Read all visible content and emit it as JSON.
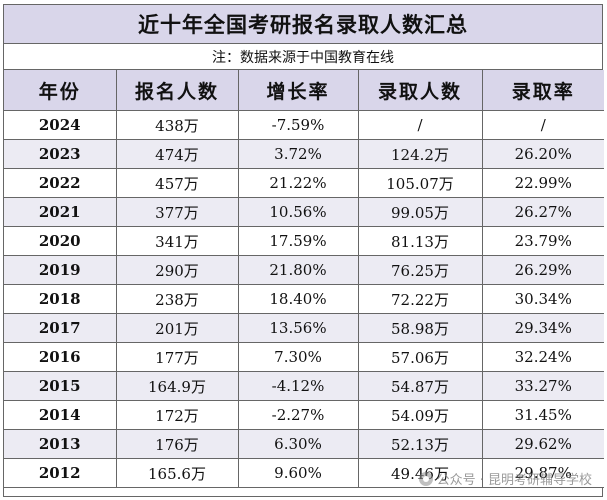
{
  "title": "近十年全国考研报名录取人数汇总",
  "note": "注：数据来源于中国教育在线",
  "headers": [
    "年份",
    "报名人数",
    "增长率",
    "录取人数",
    "录取率"
  ],
  "rows": [
    [
      "2024",
      "438万",
      "-7.59%",
      "/",
      "/"
    ],
    [
      "2023",
      "474万",
      "3.72%",
      "124.2万",
      "26.20%"
    ],
    [
      "2022",
      "457万",
      "21.22%",
      "105.07万",
      "22.99%"
    ],
    [
      "2021",
      "377万",
      "10.56%",
      "99.05万",
      "26.27%"
    ],
    [
      "2020",
      "341万",
      "17.59%",
      "81.13万",
      "23.79%"
    ],
    [
      "2019",
      "290万",
      "21.80%",
      "76.25万",
      "26.29%"
    ],
    [
      "2018",
      "238万",
      "18.40%",
      "72.22万",
      "30.34%"
    ],
    [
      "2017",
      "201万",
      "13.56%",
      "58.98万",
      "29.34%"
    ],
    [
      "2016",
      "177万",
      "7.30%",
      "57.06万",
      "32.24%"
    ],
    [
      "2015",
      "164.9万",
      "-4.12%",
      "54.87万",
      "33.27%"
    ],
    [
      "2014",
      "172万",
      "-2.27%",
      "54.09万",
      "31.45%"
    ],
    [
      "2013",
      "176万",
      "6.30%",
      "52.13万",
      "29.62%"
    ],
    [
      "2012",
      "165.6万",
      "9.60%",
      "49.46万",
      "29.87%"
    ]
  ],
  "watermark": "公众号 · 昆明考研辅导学校"
}
